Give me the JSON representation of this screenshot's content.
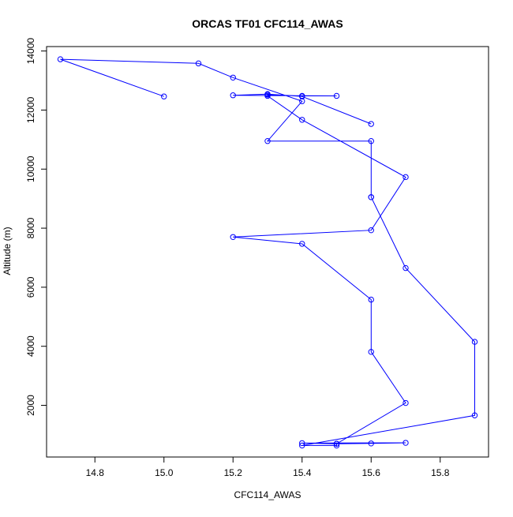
{
  "chart_data": {
    "type": "line",
    "title": "ORCAS TF01 CFC114_AWAS",
    "xlabel": "CFC114_AWAS",
    "ylabel": "Altitude (m)",
    "xlim": [
      14.66,
      15.94
    ],
    "ylim": [
      250,
      14150
    ],
    "xticks": [
      "14.8",
      "15.0",
      "15.2",
      "15.4",
      "15.6",
      "15.8"
    ],
    "yticks": [
      "2000",
      "4000",
      "6000",
      "8000",
      "10000",
      "12000",
      "14000"
    ],
    "grid": false,
    "legend": "none",
    "series_color": "#0000ff",
    "markers": "open-circle",
    "series": [
      {
        "points": [
          {
            "x": 15.0,
            "y": 12460
          },
          {
            "x": 14.7,
            "y": 13720
          },
          {
            "x": 15.1,
            "y": 13580
          },
          {
            "x": 15.2,
            "y": 13100
          },
          {
            "x": 15.4,
            "y": 12300
          },
          {
            "x": 15.3,
            "y": 10950
          },
          {
            "x": 15.6,
            "y": 10950
          },
          {
            "x": 15.6,
            "y": 9050
          },
          {
            "x": 15.6,
            "y": 9050
          },
          {
            "x": 15.7,
            "y": 6650
          },
          {
            "x": 15.9,
            "y": 4150
          },
          {
            "x": 15.9,
            "y": 1660
          },
          {
            "x": 15.4,
            "y": 640
          },
          {
            "x": 15.5,
            "y": 640
          },
          {
            "x": 15.5,
            "y": 700
          },
          {
            "x": 15.4,
            "y": 720
          },
          {
            "x": 15.7,
            "y": 730
          },
          {
            "x": 15.6,
            "y": 710
          },
          {
            "x": 15.5,
            "y": 700
          },
          {
            "x": 15.7,
            "y": 2080
          },
          {
            "x": 15.6,
            "y": 3810
          },
          {
            "x": 15.6,
            "y": 5580
          },
          {
            "x": 15.4,
            "y": 7470
          },
          {
            "x": 15.2,
            "y": 7700
          },
          {
            "x": 15.6,
            "y": 7930
          },
          {
            "x": 15.7,
            "y": 9730
          },
          {
            "x": 15.4,
            "y": 11670
          },
          {
            "x": 15.3,
            "y": 12480
          },
          {
            "x": 15.3,
            "y": 12520
          },
          {
            "x": 15.4,
            "y": 12480
          },
          {
            "x": 15.5,
            "y": 12480
          },
          {
            "x": 15.2,
            "y": 12500
          },
          {
            "x": 15.3,
            "y": 12540
          },
          {
            "x": 15.4,
            "y": 12460
          },
          {
            "x": 15.6,
            "y": 11530
          }
        ]
      }
    ]
  }
}
